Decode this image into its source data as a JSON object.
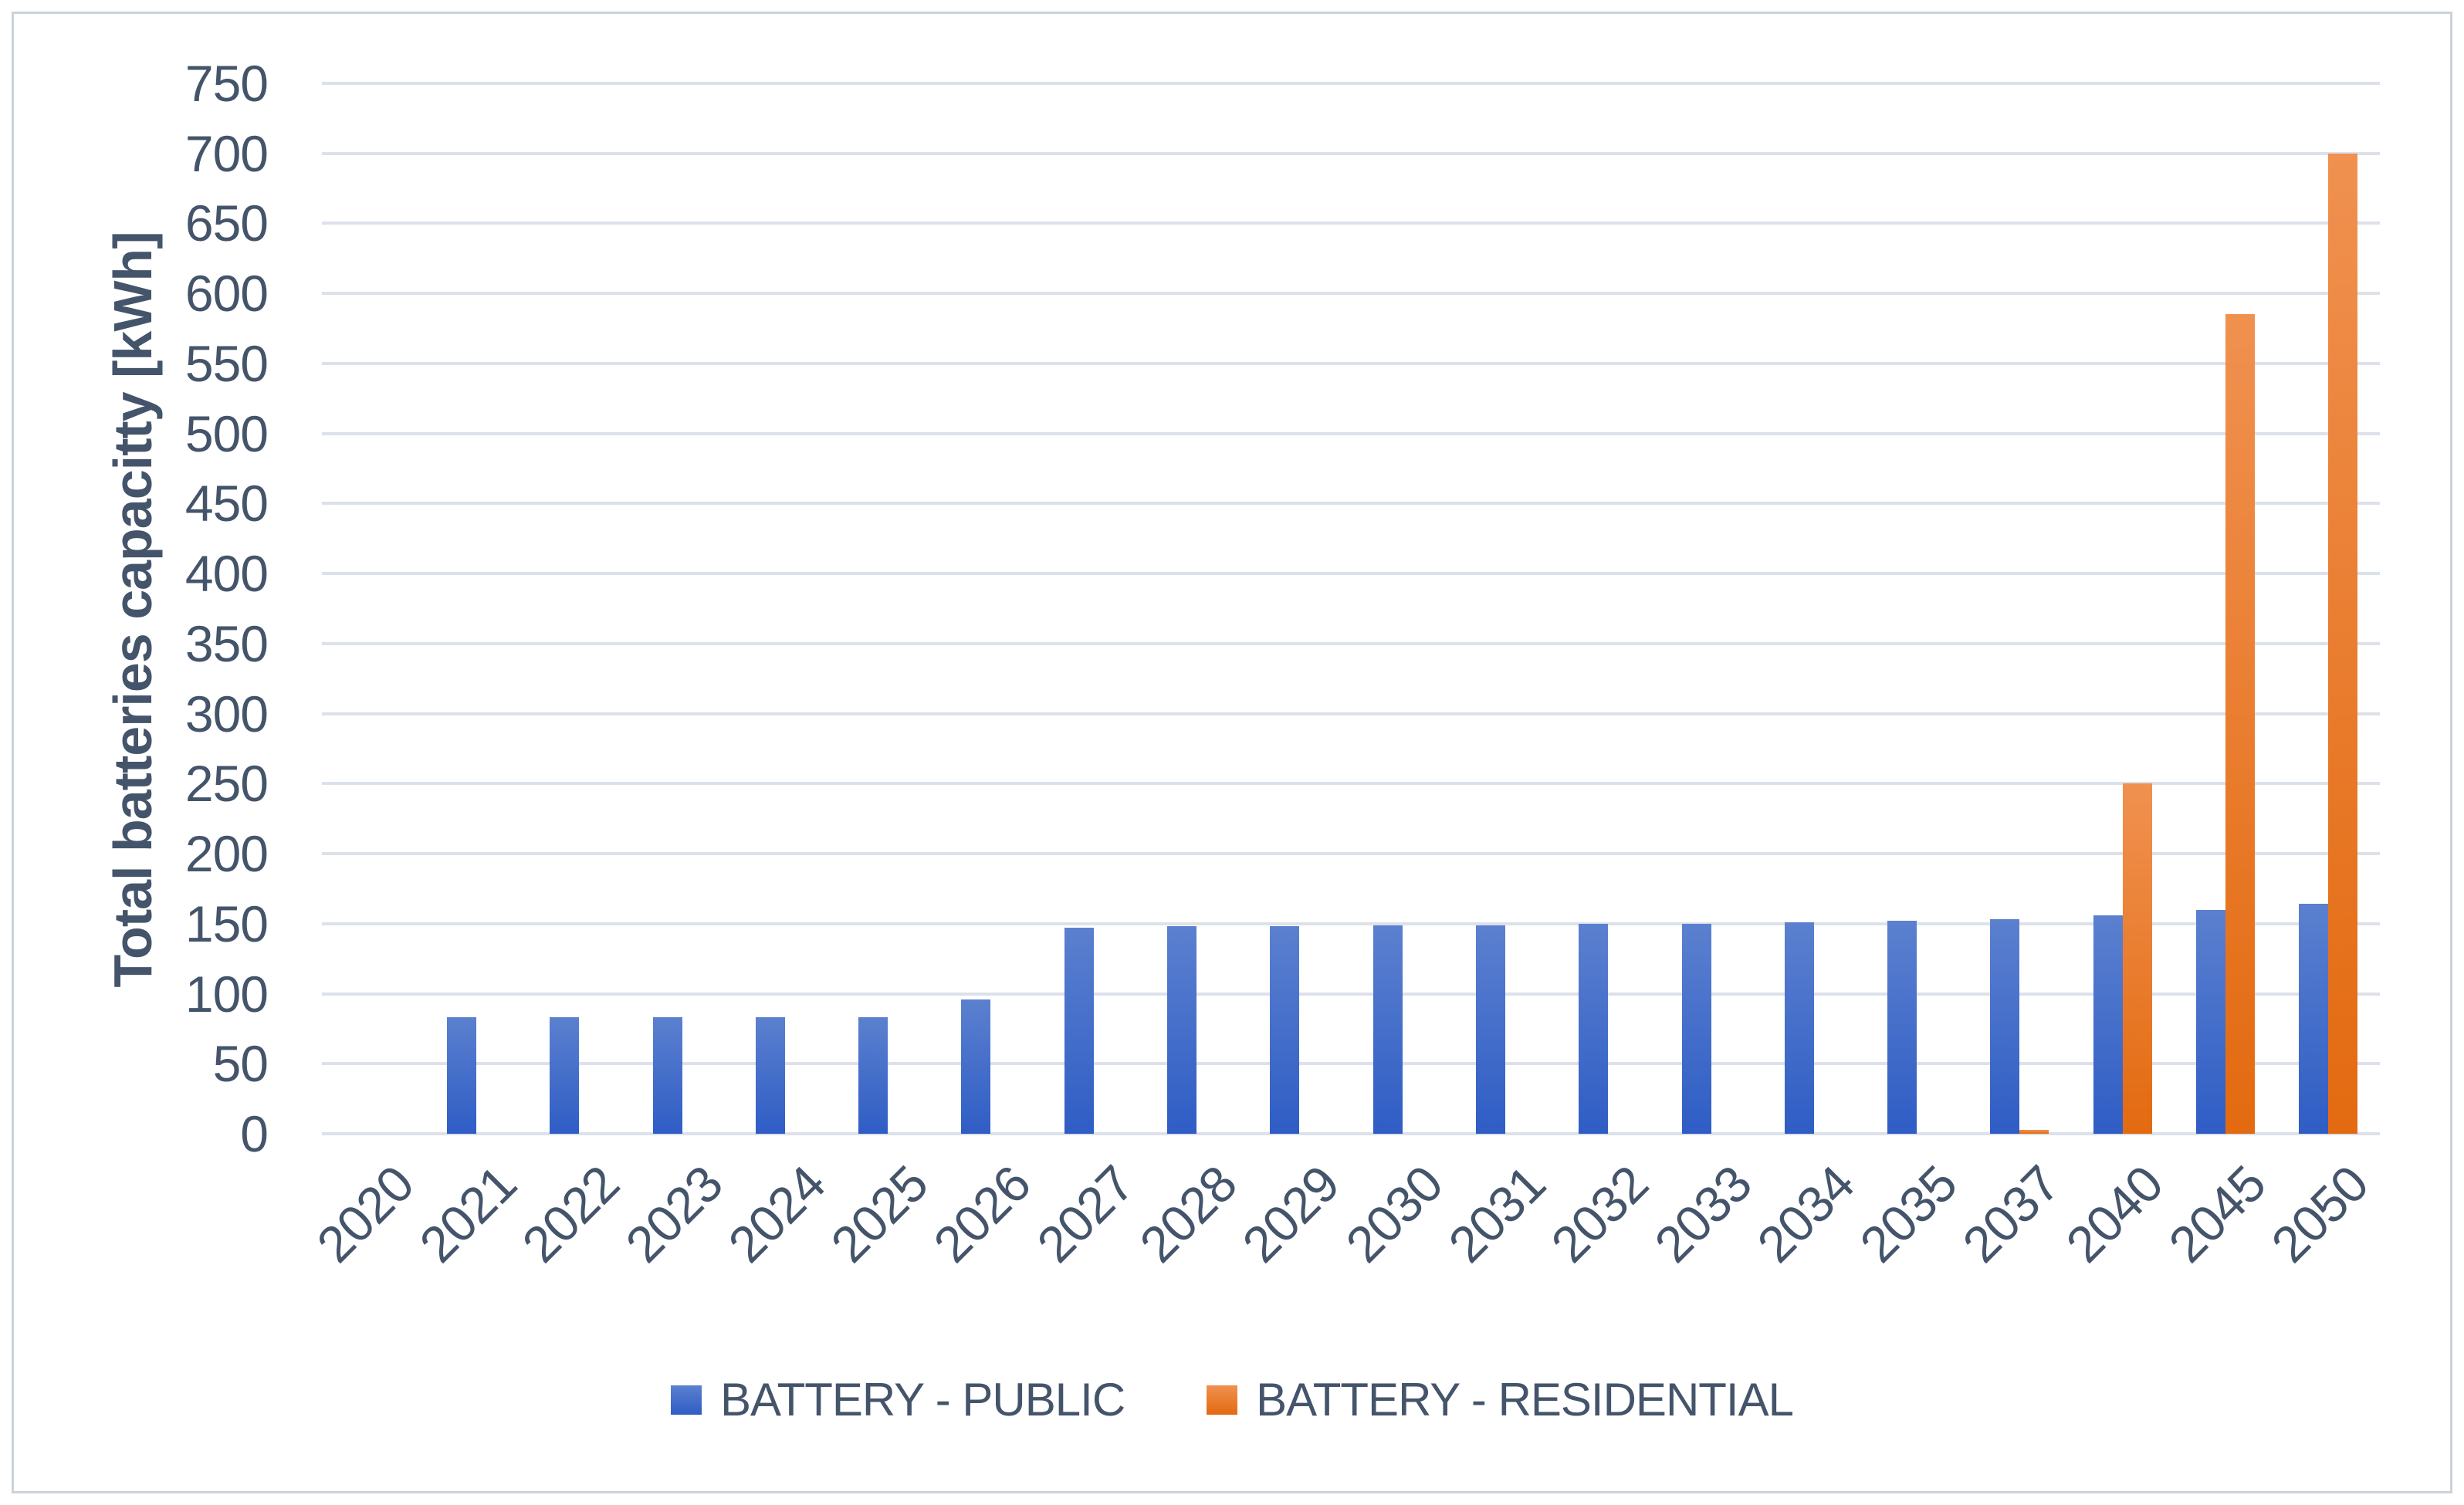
{
  "style": {
    "background": "#ffffff",
    "border_color": "#cdd2da",
    "text_color": "#44546a",
    "grid_color": "#dce1ea",
    "blue_top": "#5b80cf",
    "blue_bottom": "#2f5dc5",
    "orange_top": "#f09150",
    "orange_bottom": "#e36a10"
  },
  "chart_data": {
    "type": "bar",
    "title": "",
    "ylabel": "Total batteries capacitty [kWh]",
    "xlabel": "",
    "ylim": [
      0,
      750
    ],
    "ytick_step": 50,
    "yticks": [
      0,
      50,
      100,
      150,
      200,
      250,
      300,
      350,
      400,
      450,
      500,
      550,
      600,
      650,
      700,
      750
    ],
    "grid": true,
    "legend_position": "bottom",
    "x_label_rotation_deg": 45,
    "categories": [
      "2020",
      "2021",
      "2022",
      "2023",
      "2024",
      "2025",
      "2026",
      "2027",
      "2028",
      "2029",
      "2030",
      "2031",
      "2032",
      "2033",
      "2034",
      "2035",
      "2037",
      "2040",
      "2045",
      "2050"
    ],
    "series": [
      {
        "name": "BATTERY - PUBLIC",
        "color_key": "blue",
        "values": [
          0,
          83,
          83,
          83,
          83,
          83,
          96,
          147,
          148,
          148,
          149,
          149,
          150,
          150,
          151,
          152,
          153,
          156,
          160,
          164
        ]
      },
      {
        "name": "BATTERY - RESIDENTIAL",
        "color_key": "orange",
        "values": [
          0,
          0,
          0,
          0,
          0,
          0,
          0,
          0,
          0,
          0,
          0,
          0,
          0,
          0,
          0,
          0,
          3,
          250,
          585,
          700
        ]
      }
    ]
  }
}
